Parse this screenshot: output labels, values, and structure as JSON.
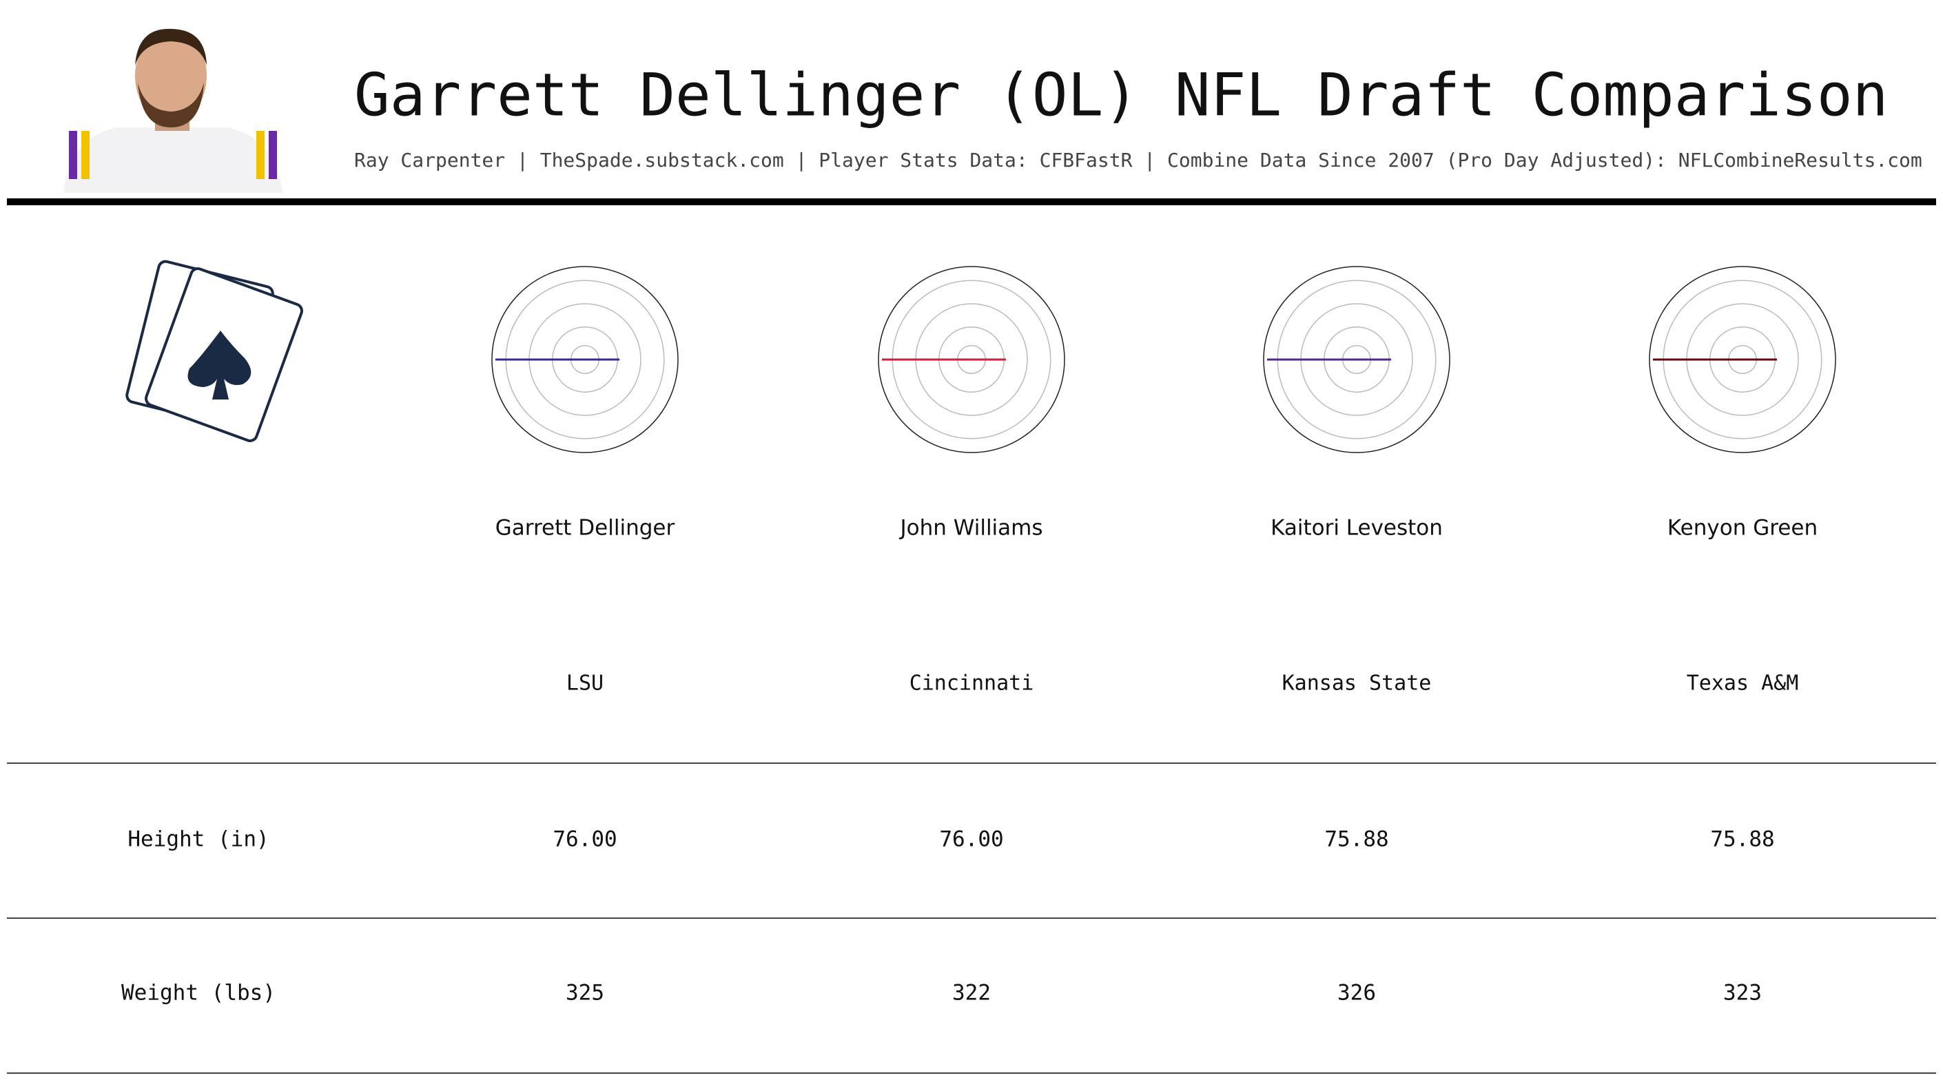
{
  "header": {
    "title": "Garrett Dellinger (OL) NFL Draft Comparison",
    "subtitle": "Ray Carpenter | TheSpade.substack.com | Player Stats Data: CFBFastR | Combine Data Since 2007 (Pro Day Adjusted): NFLCombineResults.com"
  },
  "players": [
    {
      "name": "Garrett Dellinger",
      "school": "LSU",
      "color": "#3b2a8c"
    },
    {
      "name": "John Williams",
      "school": "Cincinnati",
      "color": "#d21f3c"
    },
    {
      "name": "Kaitori Leveston",
      "school": "Kansas State",
      "color": "#4b2d86"
    },
    {
      "name": "Kenyon Green",
      "school": "Texas A&M",
      "color": "#5c0a14"
    }
  ],
  "table": {
    "rows": [
      [
        "Height (in)",
        "76.00",
        "76.00",
        "75.88",
        "75.88"
      ],
      [
        "Weight (lbs)",
        "325",
        "322",
        "326",
        "323"
      ]
    ]
  }
}
